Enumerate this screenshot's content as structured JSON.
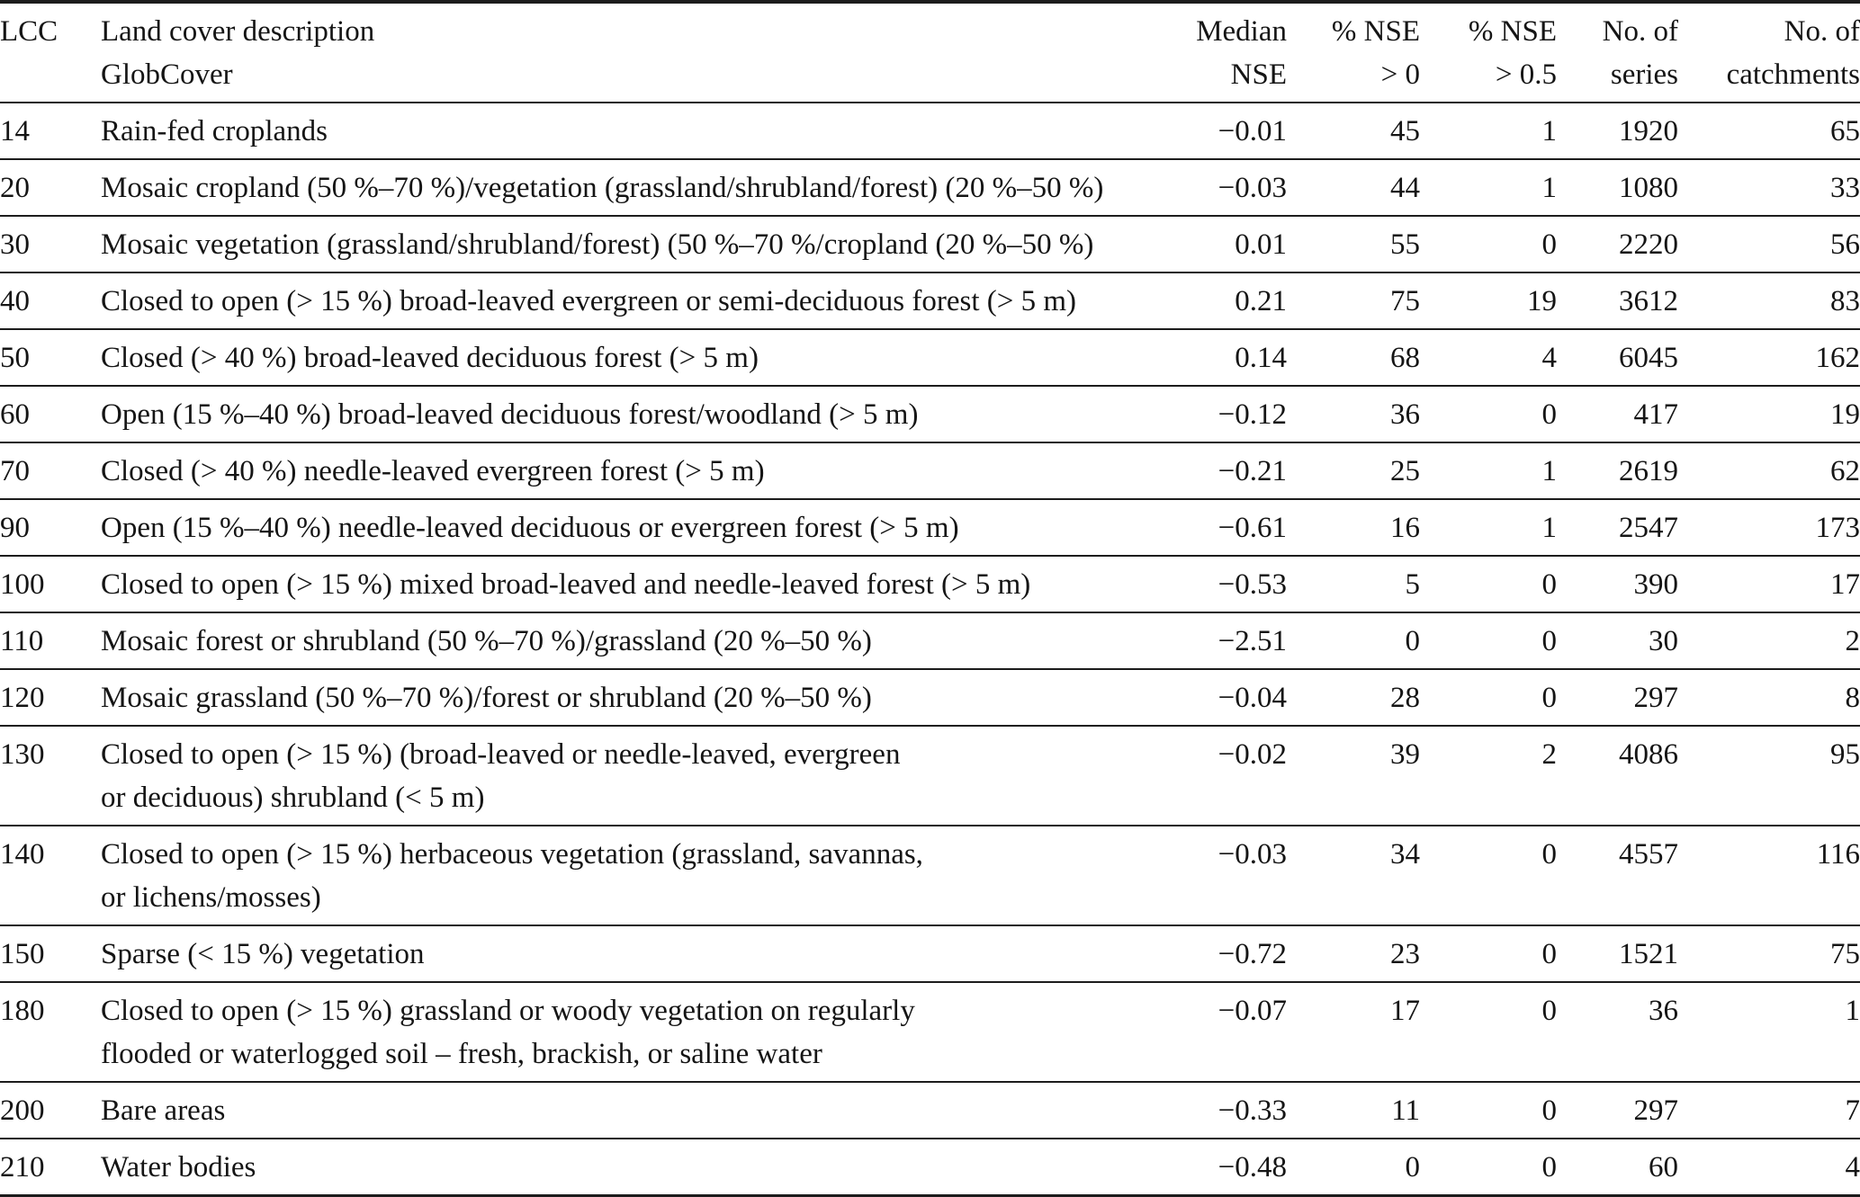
{
  "table": {
    "columns": [
      {
        "id": "lcc",
        "line1": "LCC",
        "line2": ""
      },
      {
        "id": "description",
        "line1": "Land cover description",
        "line2": "GlobCover"
      },
      {
        "id": "median_nse",
        "line1": "Median",
        "line2": "NSE"
      },
      {
        "id": "pct_nse_gt_0",
        "line1": "% NSE",
        "line2": "> 0"
      },
      {
        "id": "pct_nse_gt_05",
        "line1": "% NSE",
        "line2": "> 0.5"
      },
      {
        "id": "num_series",
        "line1": "No. of",
        "line2": "series"
      },
      {
        "id": "num_catchments",
        "line1": "No. of",
        "line2": "catchments"
      }
    ],
    "rows": [
      {
        "lcc": "14",
        "description_line1": "Rain-fed croplands",
        "description_line2": "",
        "median_nse": "−0.01",
        "pct_nse_gt_0": "45",
        "pct_nse_gt_05": "1",
        "num_series": "1920",
        "num_catchments": "65"
      },
      {
        "lcc": "20",
        "description_line1": "Mosaic cropland (50 %–70 %)/vegetation (grassland/shrubland/forest) (20 %–50 %)",
        "description_line2": "",
        "median_nse": "−0.03",
        "pct_nse_gt_0": "44",
        "pct_nse_gt_05": "1",
        "num_series": "1080",
        "num_catchments": "33"
      },
      {
        "lcc": "30",
        "description_line1": "Mosaic vegetation (grassland/shrubland/forest) (50 %–70 %/cropland (20 %–50 %)",
        "description_line2": "",
        "median_nse": "0.01",
        "pct_nse_gt_0": "55",
        "pct_nse_gt_05": "0",
        "num_series": "2220",
        "num_catchments": "56"
      },
      {
        "lcc": "40",
        "description_line1": "Closed to open (> 15 %) broad-leaved evergreen or semi-deciduous forest (> 5 m)",
        "description_line2": "",
        "median_nse": "0.21",
        "pct_nse_gt_0": "75",
        "pct_nse_gt_05": "19",
        "num_series": "3612",
        "num_catchments": "83"
      },
      {
        "lcc": "50",
        "description_line1": "Closed (> 40 %) broad-leaved deciduous forest (> 5 m)",
        "description_line2": "",
        "median_nse": "0.14",
        "pct_nse_gt_0": "68",
        "pct_nse_gt_05": "4",
        "num_series": "6045",
        "num_catchments": "162"
      },
      {
        "lcc": "60",
        "description_line1": "Open (15 %–40 %) broad-leaved deciduous forest/woodland (> 5 m)",
        "description_line2": "",
        "median_nse": "−0.12",
        "pct_nse_gt_0": "36",
        "pct_nse_gt_05": "0",
        "num_series": "417",
        "num_catchments": "19"
      },
      {
        "lcc": "70",
        "description_line1": "Closed (> 40 %) needle-leaved evergreen forest (> 5 m)",
        "description_line2": "",
        "median_nse": "−0.21",
        "pct_nse_gt_0": "25",
        "pct_nse_gt_05": "1",
        "num_series": "2619",
        "num_catchments": "62"
      },
      {
        "lcc": "90",
        "description_line1": "Open (15 %–40 %) needle-leaved deciduous or evergreen forest (> 5 m)",
        "description_line2": "",
        "median_nse": "−0.61",
        "pct_nse_gt_0": "16",
        "pct_nse_gt_05": "1",
        "num_series": "2547",
        "num_catchments": "173"
      },
      {
        "lcc": "100",
        "description_line1": "Closed to open (> 15 %) mixed broad-leaved and needle-leaved forest (> 5 m)",
        "description_line2": "",
        "median_nse": "−0.53",
        "pct_nse_gt_0": "5",
        "pct_nse_gt_05": "0",
        "num_series": "390",
        "num_catchments": "17"
      },
      {
        "lcc": "110",
        "description_line1": "Mosaic forest or shrubland (50 %–70 %)/grassland (20 %–50 %)",
        "description_line2": "",
        "median_nse": "−2.51",
        "pct_nse_gt_0": "0",
        "pct_nse_gt_05": "0",
        "num_series": "30",
        "num_catchments": "2"
      },
      {
        "lcc": "120",
        "description_line1": "Mosaic grassland (50 %–70 %)/forest or shrubland (20 %–50 %)",
        "description_line2": "",
        "median_nse": "−0.04",
        "pct_nse_gt_0": "28",
        "pct_nse_gt_05": "0",
        "num_series": "297",
        "num_catchments": "8"
      },
      {
        "lcc": "130",
        "description_line1": "Closed to open (> 15 %) (broad-leaved or needle-leaved, evergreen",
        "description_line2": "or deciduous) shrubland (< 5 m)",
        "median_nse": "−0.02",
        "pct_nse_gt_0": "39",
        "pct_nse_gt_05": "2",
        "num_series": "4086",
        "num_catchments": "95"
      },
      {
        "lcc": "140",
        "description_line1": "Closed to open (> 15 %) herbaceous vegetation (grassland, savannas,",
        "description_line2": "or lichens/mosses)",
        "median_nse": "−0.03",
        "pct_nse_gt_0": "34",
        "pct_nse_gt_05": "0",
        "num_series": "4557",
        "num_catchments": "116"
      },
      {
        "lcc": "150",
        "description_line1": "Sparse (< 15 %) vegetation",
        "description_line2": "",
        "median_nse": "−0.72",
        "pct_nse_gt_0": "23",
        "pct_nse_gt_05": "0",
        "num_series": "1521",
        "num_catchments": "75"
      },
      {
        "lcc": "180",
        "description_line1": "Closed to open (> 15 %) grassland or woody vegetation on regularly",
        "description_line2": "flooded or waterlogged soil – fresh, brackish, or saline water",
        "median_nse": "−0.07",
        "pct_nse_gt_0": "17",
        "pct_nse_gt_05": "0",
        "num_series": "36",
        "num_catchments": "1"
      },
      {
        "lcc": "200",
        "description_line1": "Bare areas",
        "description_line2": "",
        "median_nse": "−0.33",
        "pct_nse_gt_0": "11",
        "pct_nse_gt_05": "0",
        "num_series": "297",
        "num_catchments": "7"
      },
      {
        "lcc": "210",
        "description_line1": "Water bodies",
        "description_line2": "",
        "median_nse": "−0.48",
        "pct_nse_gt_0": "0",
        "pct_nse_gt_05": "0",
        "num_series": "60",
        "num_catchments": "4"
      }
    ]
  }
}
